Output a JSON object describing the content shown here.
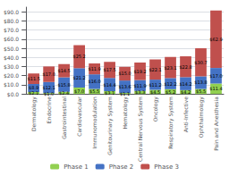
{
  "chart_data": {
    "type": "bar",
    "stacked": true,
    "categories": [
      "Dermatology",
      "Endocrine",
      "Gastrointestinal",
      "Cardiovascular",
      "Immunomodulation",
      "Genitourinary System",
      "Hematology",
      "Central Nervous System",
      "Oncology",
      "Respiratory System",
      "Anti-Infective",
      "Ophthalmology",
      "Pain and Anesthesia"
    ],
    "series": [
      {
        "name": "Phase 1",
        "color": "#92d050",
        "values": [
          2.1,
          1.0,
          2.4,
          7.0,
          5.5,
          3.1,
          1.1,
          3.3,
          4.5,
          5.2,
          4.2,
          5.5,
          11.4
        ],
        "value_labels": [
          "$2.1",
          "$1.0",
          "$2.4",
          "$7.0",
          "$5.5",
          "$3.1",
          "$1.1",
          "$3.3",
          "$4.5",
          "$5.2",
          "$4.2",
          "$5.5",
          "$11.4"
        ]
      },
      {
        "name": "Phase 2",
        "color": "#4472c4",
        "values": [
          8.9,
          12.1,
          15.8,
          21.2,
          16.0,
          14.4,
          13.6,
          11.9,
          11.2,
          12.2,
          14.2,
          13.8,
          17.0
        ],
        "value_labels": [
          "$8.9",
          "$12.1",
          "$15.8",
          "$21.2",
          "$16.0",
          "$14.4",
          "$13.6",
          "$11.9",
          "$11.2",
          "$12.2",
          "$14.2",
          "$13.8",
          "$17.0"
        ]
      },
      {
        "name": "Phase 3",
        "color": "#c0504d",
        "values": [
          11.5,
          17.0,
          14.5,
          25.2,
          11.9,
          17.5,
          15.0,
          19.2,
          22.1,
          23.1,
          22.8,
          30.7,
          62.9
        ],
        "value_labels": [
          "$11.5",
          "$17.0",
          "$14.5",
          "$25.2",
          "$11.9",
          "$17.5",
          "$15.0",
          "$19.2",
          "$22.1",
          "$23.1",
          "$22.8",
          "$30.7",
          "$62.9"
        ]
      }
    ],
    "ylim": [
      0,
      95
    ],
    "yticks": [
      {
        "value": 0,
        "label": "$0.0"
      },
      {
        "value": 10,
        "label": "$10.0"
      },
      {
        "value": 20,
        "label": "$20.0"
      },
      {
        "value": 30,
        "label": "$30.0"
      },
      {
        "value": 40,
        "label": "$40.0"
      },
      {
        "value": 50,
        "label": "$50.0"
      },
      {
        "value": 60,
        "label": "$60.0"
      },
      {
        "value": 70,
        "label": "$70.0"
      },
      {
        "value": 80,
        "label": "$80.0"
      },
      {
        "value": 90,
        "label": "$90.0"
      }
    ],
    "grid": true,
    "legend": "bottom",
    "data_labels": true
  }
}
